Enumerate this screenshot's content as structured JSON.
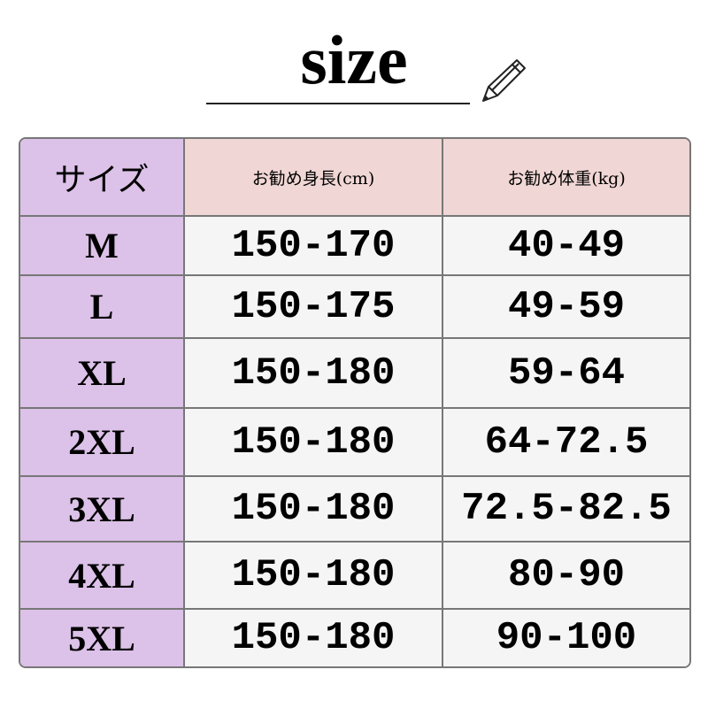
{
  "title": "size",
  "icons": {
    "pencil": "pencil-icon"
  },
  "colors": {
    "size_column": "#dcc1e8",
    "header": "#f0d6d4",
    "cell": "#f5f5f5",
    "border": "#777777"
  },
  "table": {
    "headers": [
      "サイズ",
      "お勧め身長(cm)",
      "お勧め体重(kg)"
    ],
    "rows": [
      [
        "M",
        "150-170",
        "40-49"
      ],
      [
        "L",
        "150-175",
        "49-59"
      ],
      [
        "XL",
        "150-180",
        "59-64"
      ],
      [
        "2XL",
        "150-180",
        "64-72.5"
      ],
      [
        "3XL",
        "150-180",
        "72.5-82.5"
      ],
      [
        "4XL",
        "150-180",
        "80-90"
      ],
      [
        "5XL",
        "150-180",
        "90-100"
      ]
    ]
  }
}
